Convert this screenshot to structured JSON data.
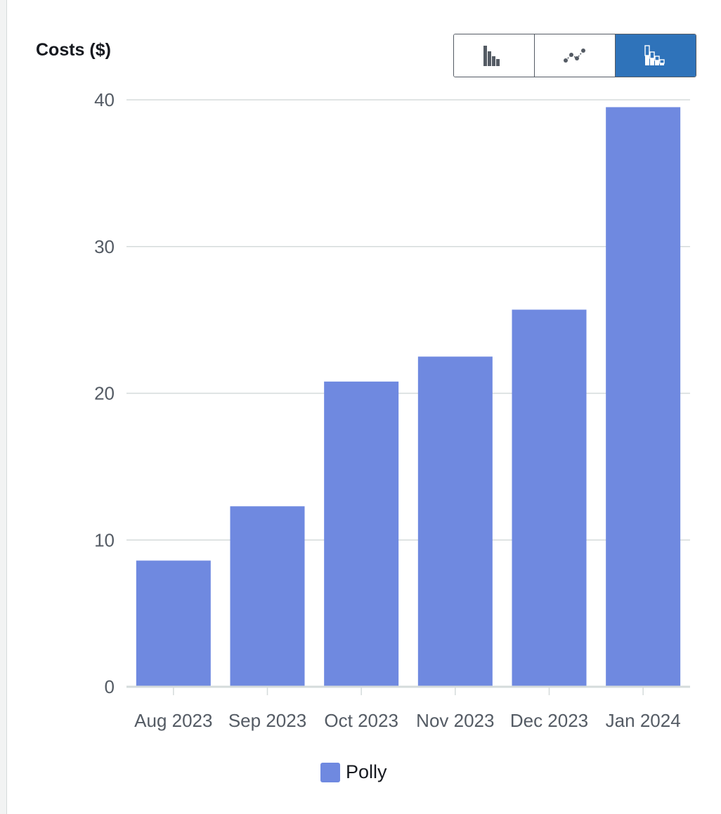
{
  "chart_title": "Costs ($)",
  "view_toggle": {
    "buttons": [
      {
        "icon": "bar-chart-icon",
        "active": false
      },
      {
        "icon": "line-chart-icon",
        "active": false
      },
      {
        "icon": "stacked-bar-chart-icon",
        "active": true
      }
    ]
  },
  "colors": {
    "bar": "#6f89e0",
    "grid": "#d5dbdb",
    "axis": "#d5dbdb",
    "active_toggle": "#2f73ba",
    "icon_dark": "#545b64"
  },
  "chart_data": {
    "type": "bar",
    "categories": [
      "Aug 2023",
      "Sep 2023",
      "Oct 2023",
      "Nov 2023",
      "Dec 2023",
      "Jan 2024"
    ],
    "series": [
      {
        "name": "Polly",
        "values": [
          8.6,
          12.3,
          20.8,
          22.5,
          25.7,
          39.5
        ]
      }
    ],
    "y_ticks": [
      "0",
      "10",
      "20",
      "30",
      "40"
    ],
    "ylim": [
      0,
      40
    ],
    "grid": true,
    "legend_position": "bottom-center"
  },
  "legend": {
    "label": "Polly"
  }
}
